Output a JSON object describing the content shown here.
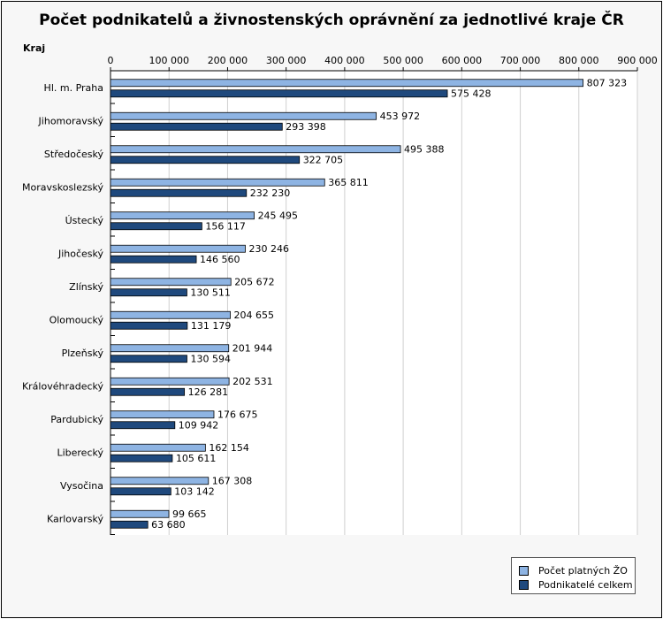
{
  "chart_data": {
    "type": "bar",
    "orientation": "horizontal",
    "title": "Počet podnikatelů a živnostenských oprávnění za jednotlivé kraje ČR",
    "ylabel": "Kraj",
    "xlabel": "",
    "xlim": [
      0,
      900000
    ],
    "x_ticks": [
      "0",
      "100 000",
      "200 000",
      "300 000",
      "400 000",
      "500 000",
      "600 000",
      "700 000",
      "800 000",
      "900 000"
    ],
    "x_axis_position": "top",
    "grid": true,
    "legend_position": "bottom-right",
    "categories": [
      "Hl. m. Praha",
      "Jihomoravský",
      "Středočeský",
      "Moravskoslezský",
      "Ústecký",
      "Jihočeský",
      "Zlínský",
      "Olomoucký",
      "Plzeňský",
      "Královéhradecký",
      "Pardubický",
      "Liberecký",
      "Vysočina",
      "Karlovarský"
    ],
    "series": [
      {
        "name": "Počet platných ŽO",
        "color": "#8eb4e3",
        "values": [
          807323,
          453972,
          495388,
          365811,
          245495,
          230246,
          205672,
          204655,
          201944,
          202531,
          176675,
          162154,
          167308,
          99665
        ],
        "labels": [
          "807 323",
          "453 972",
          "495 388",
          "365 811",
          "245 495",
          "230 246",
          "205 672",
          "204 655",
          "201 944",
          "202 531",
          "176 675",
          "162 154",
          "167 308",
          "99 665"
        ]
      },
      {
        "name": "Podnikatelé celkem",
        "color": "#1f497d",
        "values": [
          575428,
          293398,
          322705,
          232230,
          156117,
          146560,
          130511,
          131179,
          130594,
          126281,
          109942,
          105611,
          103142,
          63680
        ],
        "labels": [
          "575 428",
          "293 398",
          "322 705",
          "232 230",
          "156 117",
          "146 560",
          "130 511",
          "131 179",
          "130 594",
          "126 281",
          "109 942",
          "105 611",
          "103 142",
          "63 680"
        ]
      }
    ]
  }
}
